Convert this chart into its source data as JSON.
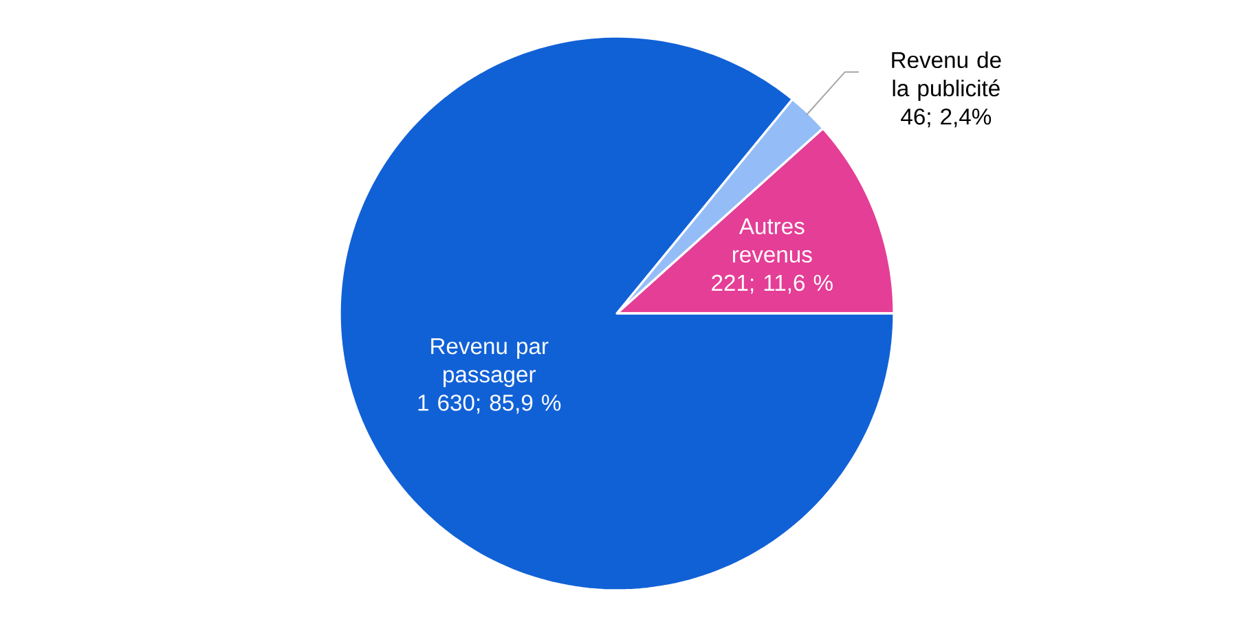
{
  "chart_data": {
    "type": "pie",
    "categories": [
      "Autres revenus",
      "Revenu de la publicité",
      "Revenu par passager"
    ],
    "values": [
      221,
      46,
      1630
    ],
    "colors": [
      "#e43e96",
      "#94bdf7",
      "#1161d6"
    ],
    "value_labels": [
      "221; 11,6 %",
      "46; 2,4%",
      "1 630; 85,9 %"
    ]
  }
}
